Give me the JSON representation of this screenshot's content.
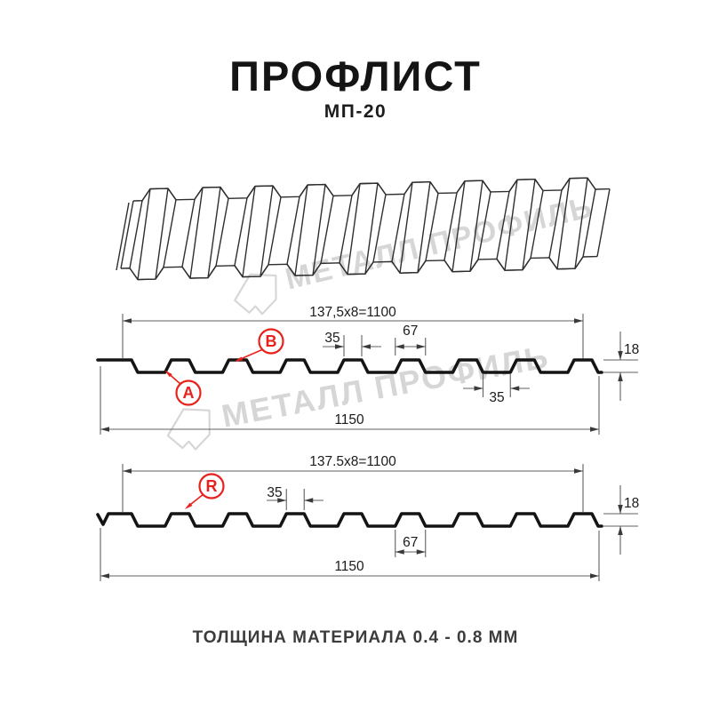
{
  "title": "ПРОФЛИСТ",
  "subtitle": "МП-20",
  "footer": "ТОЛЩИНА МАТЕРИАЛА 0.4 - 0.8 ММ",
  "watermark": {
    "text": "МЕТАЛЛ ПРОФИЛЬ"
  },
  "colors": {
    "accent_red": "#E8211D",
    "drawing_line": "#141414",
    "dimension_line": "#606060",
    "watermark_gray": "#D6D6D6"
  },
  "diagram_top": {
    "dim_working_width": "137,5x8=1100",
    "dim_overall_width": "1150",
    "dim_crest_top": "35",
    "dim_crest_base": "67",
    "dim_valley": "35",
    "dim_height": "18",
    "marker_a": "A",
    "marker_b": "B"
  },
  "diagram_bottom": {
    "dim_working_width": "137.5x8=1100",
    "dim_overall_width": "1150",
    "dim_crest_top": "35",
    "dim_crest_base": "67",
    "dim_height": "18",
    "marker_r": "R"
  }
}
